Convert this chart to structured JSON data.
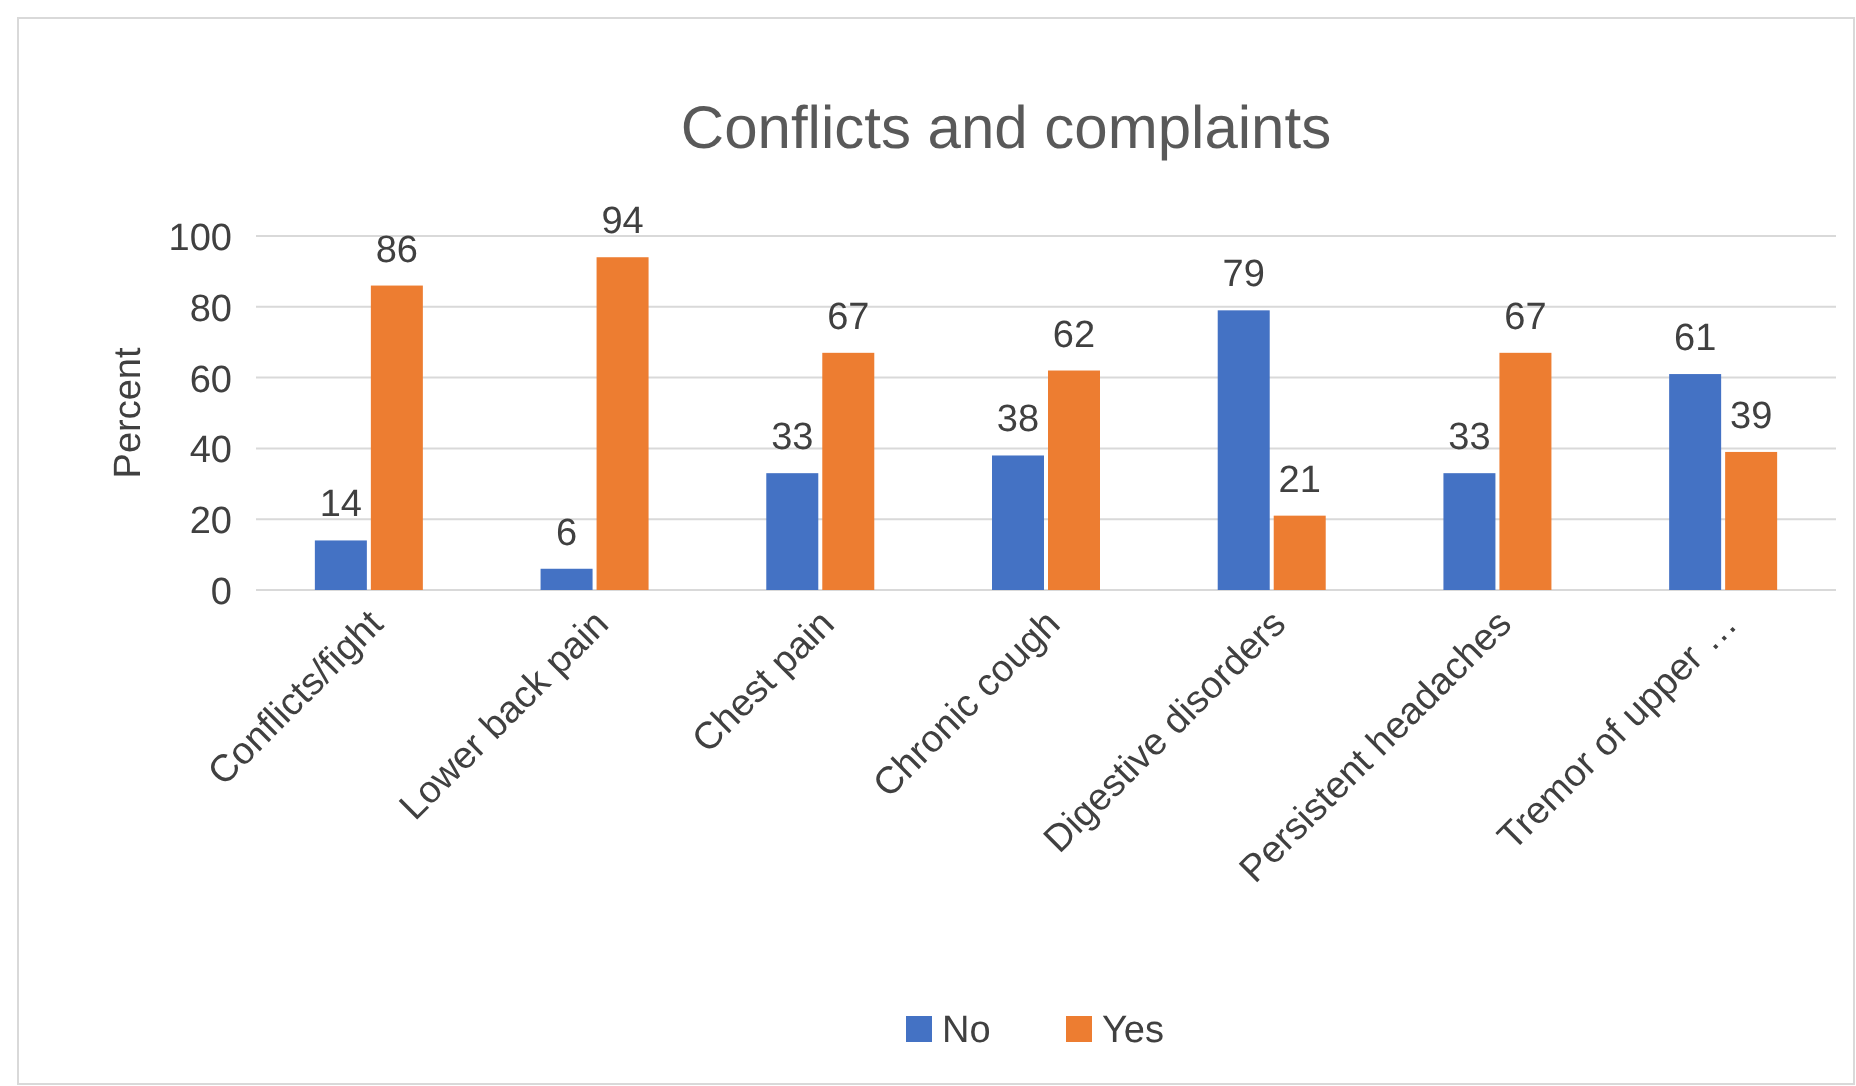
{
  "chart_data": {
    "type": "bar",
    "title": "Conflicts and complaints",
    "ylabel": "Percent",
    "categories": [
      "Conflicts/fight",
      "Lower back pain",
      "Chest pain",
      "Chronic cough",
      "Digestive disorders",
      "Persistent headaches",
      "Tremor of upper …"
    ],
    "series": [
      {
        "name": "No",
        "color": "#4472c4",
        "values": [
          14,
          6,
          33,
          38,
          79,
          33,
          61
        ]
      },
      {
        "name": "Yes",
        "color": "#ed7d31",
        "values": [
          86,
          94,
          67,
          62,
          21,
          67,
          39
        ]
      }
    ],
    "ylim": [
      0,
      100
    ],
    "yticks": [
      0,
      20,
      40,
      60,
      80,
      100
    ],
    "grid": "y",
    "legend": "bottom",
    "data_labels": true
  }
}
